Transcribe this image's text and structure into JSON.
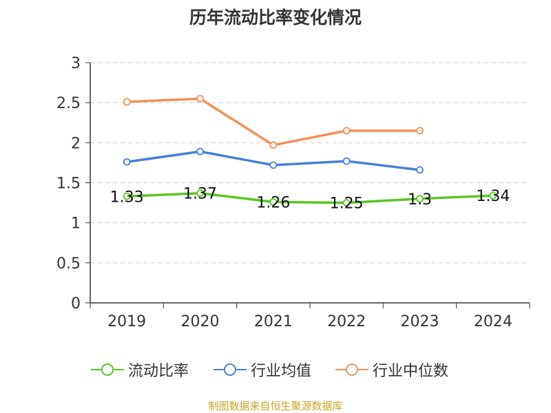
{
  "title": "历年流动比率变化情况",
  "source": "制图数据来自恒生聚源数据库",
  "colors": {
    "current_ratio": "#5cc423",
    "industry_avg": "#4a7fd8",
    "industry_median": "#f78e55",
    "axis": "#333333",
    "grid": "#cccccc"
  },
  "chart_data": {
    "type": "line",
    "title": "历年流动比率变化情况",
    "categories": [
      "2019",
      "2020",
      "2021",
      "2022",
      "2023",
      "2024"
    ],
    "ylim": [
      0,
      3
    ],
    "yticks": [
      "0",
      "0.5",
      "1",
      "1.5",
      "2",
      "2.5",
      "3"
    ],
    "ytick_values": [
      0,
      0.5,
      1,
      1.5,
      2,
      2.5,
      3
    ],
    "grid": true,
    "legend_position": "bottom",
    "series": [
      {
        "key": "current_ratio",
        "name": "流动比率",
        "values": [
          1.33,
          1.37,
          1.26,
          1.25,
          1.3,
          1.34
        ],
        "labels": [
          "1.33",
          "1.37",
          "1.26",
          "1.25",
          "1.3",
          "1.34"
        ],
        "show_labels": true
      },
      {
        "key": "industry_avg",
        "name": "行业均值",
        "values": [
          1.76,
          1.89,
          1.72,
          1.77,
          1.66,
          null
        ],
        "show_labels": false
      },
      {
        "key": "industry_median",
        "name": "行业中位数",
        "values": [
          2.51,
          2.55,
          1.97,
          2.15,
          2.15,
          null
        ],
        "show_labels": false
      }
    ]
  }
}
